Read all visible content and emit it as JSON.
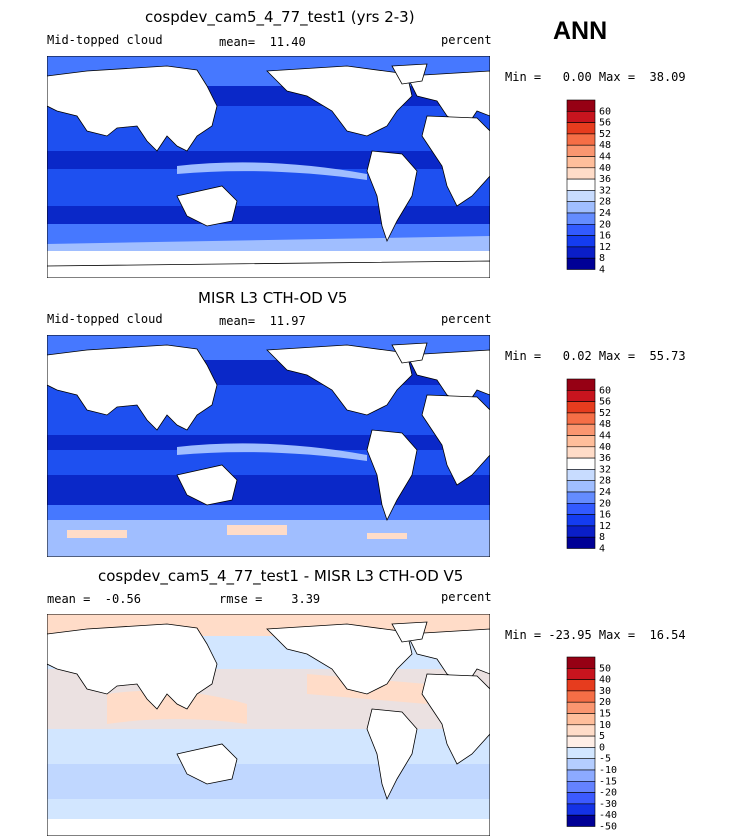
{
  "season_label": "ANN",
  "panels": [
    {
      "title": "cospdev_cam5_4_77_test1 (yrs 2-3)",
      "left_label": "Mid-topped cloud",
      "center_label": "mean=  11.40",
      "right_label": "percent",
      "minmax": "Min =   0.00 Max =  38.09",
      "colorbar_labels": [
        "60",
        "56",
        "52",
        "48",
        "44",
        "40",
        "36",
        "32",
        "28",
        "24",
        "20",
        "16",
        "12",
        "8",
        "4"
      ],
      "colorbar_colors": [
        "#960014",
        "#c8141e",
        "#e63c1e",
        "#f56e46",
        "#fa9670",
        "#ffbe9b",
        "#ffdcc8",
        "#ffffff",
        "#c8dcff",
        "#a0beff",
        "#648cff",
        "#325aff",
        "#143cf0",
        "#0a1ec8",
        "#000096"
      ]
    },
    {
      "title": "MISR L3 CTH-OD V5",
      "left_label": "Mid-topped cloud",
      "center_label": "mean=  11.97",
      "right_label": "percent",
      "minmax": "Min =   0.02 Max =  55.73",
      "colorbar_labels": [
        "60",
        "56",
        "52",
        "48",
        "44",
        "40",
        "36",
        "32",
        "28",
        "24",
        "20",
        "16",
        "12",
        "8",
        "4"
      ],
      "colorbar_colors": [
        "#960014",
        "#c8141e",
        "#e63c1e",
        "#f56e46",
        "#fa9670",
        "#ffbe9b",
        "#ffdcc8",
        "#ffffff",
        "#c8dcff",
        "#a0beff",
        "#648cff",
        "#325aff",
        "#143cf0",
        "#0a1ec8",
        "#000096"
      ]
    },
    {
      "title": "cospdev_cam5_4_77_test1 - MISR L3 CTH-OD V5",
      "left_label": "mean =  -0.56",
      "center_label": "rmse =    3.39",
      "right_label": "percent",
      "minmax": "Min = -23.95 Max =  16.54",
      "colorbar_labels": [
        "50",
        "40",
        "30",
        "20",
        "15",
        "10",
        "5",
        "0",
        "-5",
        "-10",
        "-15",
        "-20",
        "-30",
        "-40",
        "-50"
      ],
      "colorbar_colors": [
        "#960014",
        "#c8141e",
        "#e63c1e",
        "#f56e46",
        "#fa9670",
        "#ffbe9b",
        "#ffdcc8",
        "#ffeee6",
        "#d2e6ff",
        "#b4cdff",
        "#8caaff",
        "#6482ff",
        "#3c5aff",
        "#1432e6",
        "#000096"
      ]
    }
  ],
  "map_colors": {
    "panel1": {
      "deep": "#0a28c8",
      "mid": "#1e50f0",
      "light": "#4678ff",
      "pale": "#a0beff",
      "white": "#ffffff"
    },
    "panel2": {
      "deep": "#0a28c8",
      "mid": "#1e50f0",
      "light": "#4678ff",
      "pale": "#a0beff",
      "white": "#ffffff",
      "pink": "#ffdcc8"
    },
    "panel3": {
      "base": "#d2e6ff",
      "pale": "#b4cdff",
      "peach": "#ffdcc8",
      "salmon": "#ffbe9b"
    }
  }
}
